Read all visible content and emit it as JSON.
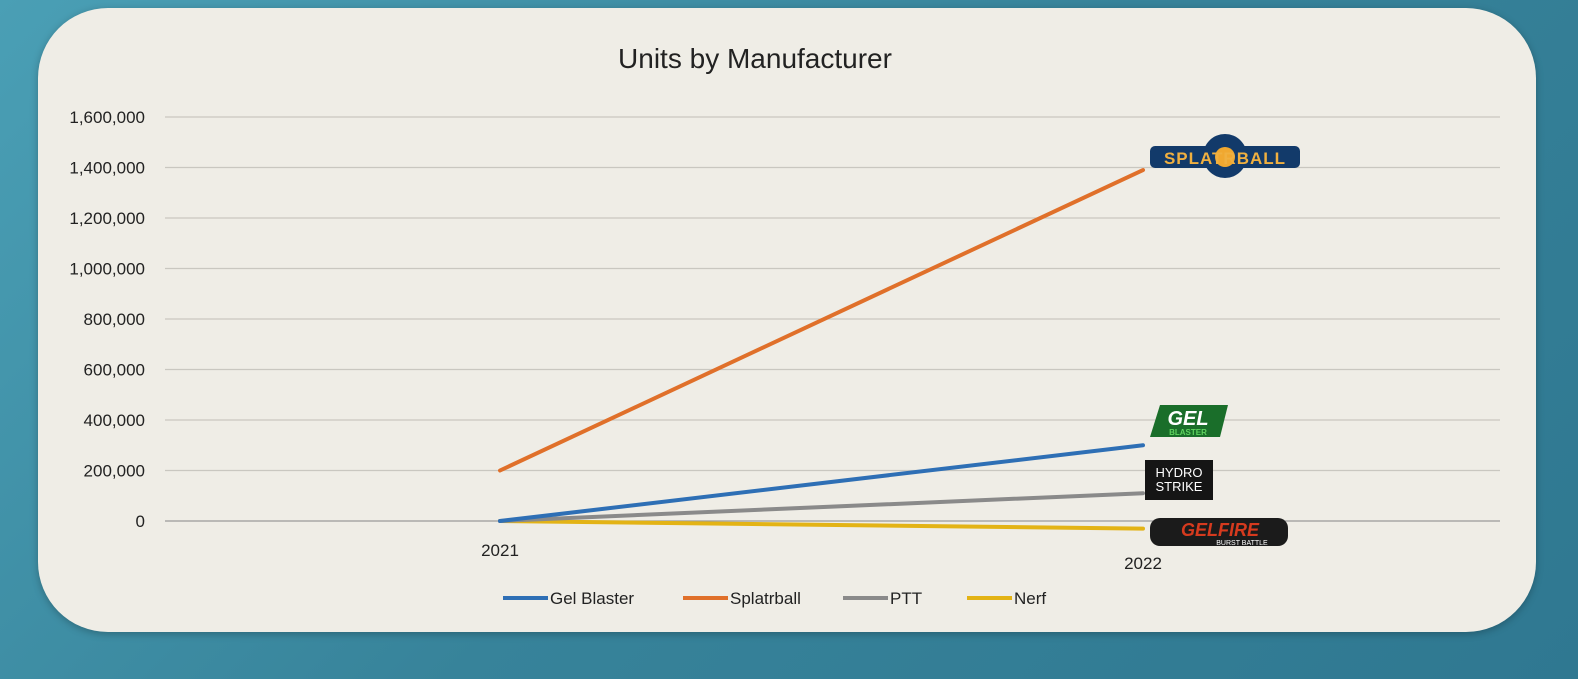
{
  "chart_data": {
    "type": "line",
    "title": "Units by Manufacturer",
    "categories": [
      "2021",
      "2022"
    ],
    "ylim": [
      0,
      1600000
    ],
    "yticks": [
      "0",
      "200,000",
      "400,000",
      "600,000",
      "800,000",
      "1,000,000",
      "1,200,000",
      "1,400,000",
      "1,600,000"
    ],
    "grid": true,
    "legend_position": "bottom",
    "series": [
      {
        "name": "Gel Blaster",
        "values": [
          0,
          300000
        ],
        "color": "#2e6fb5",
        "logo": "GEL BLASTER"
      },
      {
        "name": "Splatrball",
        "values": [
          200000,
          1390000
        ],
        "color": "#e0702a",
        "logo": "SPLATRBALL"
      },
      {
        "name": "PTT",
        "values": [
          0,
          110000
        ],
        "color": "#8a8a8a",
        "logo": "HYDRO STRIKE"
      },
      {
        "name": "Nerf",
        "values": [
          0,
          -30000
        ],
        "color": "#e3b315",
        "logo": "GELFIRE BURST BATTLE"
      }
    ]
  }
}
